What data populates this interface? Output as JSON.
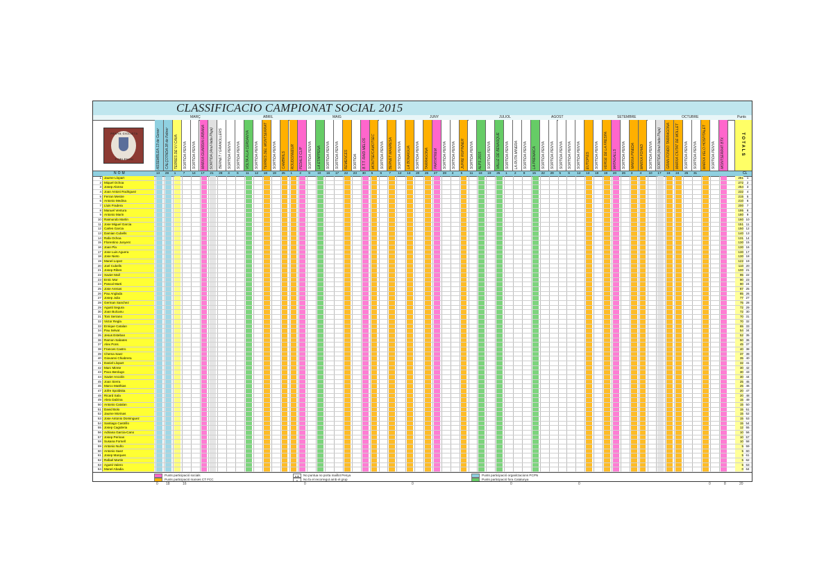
{
  "title": "CLASSIFICACIO CAMPIONAT SOCIAL 2015",
  "logo_text_top": "PENYA CICLISTA",
  "logo_text_bottom": "POBLENOU",
  "months": [
    "MARÇ",
    "ABRIL",
    "MAIG",
    "JUNY",
    "JULIOL",
    "AGOST",
    "SETEMBRE",
    "OCTUBRE",
    "Punts"
  ],
  "header_columns": [
    {
      "label": "ASSEMBLEA 13 de Gener",
      "color": "#8fd0e0"
    },
    {
      "label": "CALÇOTADA 28 de Febrer",
      "color": "#8fd0e0"
    },
    {
      "label": "TERRES DE V.I CAVA",
      "color": "#ffff66"
    },
    {
      "label": "SORTIDA PENYA",
      "color": "#ffffff"
    },
    {
      "label": "SORTIDA PENYA",
      "color": "#ffffff"
    },
    {
      "label": "MARXA GUARDIA URBANA",
      "color": "#ff66cc"
    },
    {
      "label": "SORTIDA (Anul·lada Pluja)",
      "color": "#e0e0e0"
    },
    {
      "label": "BERNET / GRANOLLERS",
      "color": "#ffffff"
    },
    {
      "label": "SORTIDA PENYA",
      "color": "#ffffff"
    },
    {
      "label": "SORTIDA PENYA",
      "color": "#ffffff"
    },
    {
      "label": "VOLTA A LA CERDANYA",
      "color": "#66cc66"
    },
    {
      "label": "SORTIDA PENYA",
      "color": "#ffffff"
    },
    {
      "label": "TERRES DEL MONTSERRAT",
      "color": "#ffb000"
    },
    {
      "label": "SORTIDA PENYA",
      "color": "#ffffff"
    },
    {
      "label": "CAMBRILS",
      "color": "#ffb000"
    },
    {
      "label": "ROUDONNEUR",
      "color": "#ffb000"
    },
    {
      "label": "PEDALS CLIP",
      "color": "#ff66cc"
    },
    {
      "label": "SORTIDA PENYA",
      "color": "#ffffff"
    },
    {
      "label": "LA ETAPPENA",
      "color": "#66cc66"
    },
    {
      "label": "SORTIDA PENYA",
      "color": "#ffffff"
    },
    {
      "label": "SORTIDA PENYA",
      "color": "#ffffff"
    },
    {
      "label": "REMENCES",
      "color": "#ffb000"
    },
    {
      "label": "SORTIDA",
      "color": "#ffffff"
    },
    {
      "label": "B.T.T. RAID MELOS",
      "color": "#ff66cc"
    },
    {
      "label": "MONTSE/CAMOTSEC",
      "color": "#ffb000"
    },
    {
      "label": "SORTIDA PENYA",
      "color": "#ffffff"
    },
    {
      "label": "BERNET MANRESA",
      "color": "#ffb000"
    },
    {
      "label": "SORTIDA PENYA",
      "color": "#ffffff"
    },
    {
      "label": "LA BONAIGUA",
      "color": "#ffb000"
    },
    {
      "label": "SORTIDA PENYA",
      "color": "#ffffff"
    },
    {
      "label": "TARRAGONA",
      "color": "#ffb000"
    },
    {
      "label": "PARTATREM",
      "color": "#ff66cc"
    },
    {
      "label": "SORTIDA PENYA",
      "color": "#ffffff"
    },
    {
      "label": "SORTIDA PENYA",
      "color": "#ffffff"
    },
    {
      "label": "JUFRE RUPINNER",
      "color": "#ffb000"
    },
    {
      "label": "SORTIDA PENYA",
      "color": "#ffffff"
    },
    {
      "label": "ALPS 2015",
      "color": "#66cc66"
    },
    {
      "label": "SORTIDA PENYA",
      "color": "#ffffff"
    },
    {
      "label": "VALLE DE BENASQUE",
      "color": "#66cc66"
    },
    {
      "label": "SORTIDA PENYA",
      "color": "#ffffff"
    },
    {
      "label": "LA RUTA MINERA",
      "color": "#ffffff"
    },
    {
      "label": "SORTIDA PENYA",
      "color": "#ffffff"
    },
    {
      "label": "LA PRENAICA",
      "color": "#66cc66"
    },
    {
      "label": "SORTIDA PENYA",
      "color": "#ffffff"
    },
    {
      "label": "SORTIDA PENYA",
      "color": "#ffffff"
    },
    {
      "label": "SORTIDA PENYA",
      "color": "#ffffff"
    },
    {
      "label": "SORTIDA PENYA",
      "color": "#ffffff"
    },
    {
      "label": "SORTIDA PENYA",
      "color": "#ffffff"
    },
    {
      "label": "EUTOPIES",
      "color": "#ffb000"
    },
    {
      "label": "SORTIDA PENYA",
      "color": "#ffffff"
    },
    {
      "label": "VERGE DE LA FRESPA",
      "color": "#ffb000"
    },
    {
      "label": "MATAGALLS",
      "color": "#ff66cc"
    },
    {
      "label": "SORTIDA PENYA",
      "color": "#ffffff"
    },
    {
      "label": "MARXA PINEDA",
      "color": "#ffb000"
    },
    {
      "label": "MARXA FOHAD",
      "color": "#ffb000"
    },
    {
      "label": "SORTIDA PENYA",
      "color": "#ffffff"
    },
    {
      "label": "SORTIDA (Anul·lada Pluja)",
      "color": "#e0e0e0"
    },
    {
      "label": "GRAN FONDO TARRAGONA",
      "color": "#ffb000"
    },
    {
      "label": "MARXA CIUTAT DE MOLLET",
      "color": "#ffb000"
    },
    {
      "label": "SORTIDA PENYA",
      "color": "#ffffff"
    },
    {
      "label": "SORTIDA PENYA",
      "color": "#ffffff"
    },
    {
      "label": "MARXA VELO HOSPITALET",
      "color": "#ffb000"
    },
    {
      "label": "SORTIDA PENYA",
      "color": "#ffffff"
    },
    {
      "label": "MONTSERRAT BTX",
      "color": "#ff66cc"
    },
    {
      "label": "ULTIMA SORTIDA PENYA",
      "color": "#ffffff"
    }
  ],
  "totals_label": "TOTALS",
  "number_row_label": "NOM",
  "cl_label": "CL",
  "date_numbers": [
    "13",
    "28",
    "1",
    "7",
    "14",
    "17",
    "21",
    "28",
    "4",
    "6",
    "11",
    "12",
    "18",
    "19",
    "25",
    "1",
    "2",
    "9",
    "10",
    "16",
    "17",
    "22",
    "23",
    "30",
    "5",
    "6",
    "7",
    "12",
    "13",
    "20",
    "26",
    "27",
    "28",
    "4",
    "5",
    "11",
    "18",
    "19",
    "25",
    "1",
    "2",
    "8",
    "15",
    "22",
    "29",
    "5",
    "6",
    "12",
    "13",
    "19",
    "19",
    "20",
    "26",
    "3",
    "4",
    "10",
    "17",
    "18",
    "24",
    "25",
    "31"
  ],
  "participants": [
    {
      "pos": "1",
      "name": "Jaume Llopart",
      "pts": "281",
      "cl": "1"
    },
    {
      "pos": "2",
      "name": "Miquel Ochoa",
      "pts": "272",
      "cl": "2"
    },
    {
      "pos": "3",
      "name": "Josep Alonso",
      "pts": "254",
      "cl": "3"
    },
    {
      "pos": "4",
      "name": "Joan Antoni Rodriguez",
      "pts": "232",
      "cl": "4"
    },
    {
      "pos": "5",
      "name": "Ferran Mestre",
      "pts": "215",
      "cl": "5"
    },
    {
      "pos": "6",
      "name": "Antonio Medina",
      "pts": "210",
      "cl": "6"
    },
    {
      "pos": "7",
      "name": "Lluis Fradera",
      "pts": "200",
      "cl": "7"
    },
    {
      "pos": "8",
      "name": "Manuel Ventura",
      "pts": "195",
      "cl": "8"
    },
    {
      "pos": "9",
      "name": "Antonio Marin",
      "pts": "180",
      "cl": "9"
    },
    {
      "pos": "10",
      "name": "Raimundo Martin",
      "pts": "160",
      "cl": "10"
    },
    {
      "pos": "11",
      "name": "Jose Miguel Garcia",
      "pts": "151",
      "cl": "11"
    },
    {
      "pos": "12",
      "name": "Carles Garcia",
      "pts": "150",
      "cl": "12"
    },
    {
      "pos": "13",
      "name": "Damian Cubells",
      "pts": "140",
      "cl": "13"
    },
    {
      "pos": "14",
      "name": "Rafa Ochoa",
      "pts": "131",
      "cl": "14"
    },
    {
      "pos": "15",
      "name": "Florentino Junyent",
      "pts": "130",
      "cl": "15"
    },
    {
      "pos": "16",
      "name": "Joan Pla",
      "pts": "130",
      "cl": "16"
    },
    {
      "pos": "17",
      "name": "Jose Luis Aguera",
      "pts": "130",
      "cl": "17"
    },
    {
      "pos": "18",
      "name": "Jose Nieto",
      "pts": "130",
      "cl": "18"
    },
    {
      "pos": "19",
      "name": "Manel Lopez",
      "pts": "122",
      "cl": "19"
    },
    {
      "pos": "20",
      "name": "Joel Cubells",
      "pts": "110",
      "cl": "20"
    },
    {
      "pos": "21",
      "name": "Josep Ribes",
      "pts": "100",
      "cl": "21"
    },
    {
      "pos": "22",
      "name": "Xavier Mall",
      "pts": "95",
      "cl": "22"
    },
    {
      "pos": "23",
      "name": "Enric Mor",
      "pts": "90",
      "cl": "23"
    },
    {
      "pos": "24",
      "name": "Pascal Marti",
      "pts": "90",
      "cl": "24"
    },
    {
      "pos": "25",
      "name": "Jose Arenas",
      "pts": "87",
      "cl": "25"
    },
    {
      "pos": "26",
      "name": "Pau Anglada",
      "pts": "85",
      "cl": "26"
    },
    {
      "pos": "27",
      "name": "Josep Julia",
      "pts": "77",
      "cl": "27"
    },
    {
      "pos": "28",
      "name": "German Sanchez",
      "pts": "75",
      "cl": "28"
    },
    {
      "pos": "29",
      "name": "Agusti Segura",
      "pts": "72",
      "cl": "29"
    },
    {
      "pos": "30",
      "name": "Joan Bulcanu",
      "pts": "72",
      "cl": "30"
    },
    {
      "pos": "31",
      "name": "Toni Serrano",
      "pts": "70",
      "cl": "31"
    },
    {
      "pos": "32",
      "name": "Victor Regla",
      "pts": "70",
      "cl": "32"
    },
    {
      "pos": "33",
      "name": "Enrique Catalan",
      "pts": "65",
      "cl": "33"
    },
    {
      "pos": "34",
      "name": "Pau Selvat",
      "pts": "54",
      "cl": "34"
    },
    {
      "pos": "35",
      "name": "Jesus Esteban",
      "pts": "52",
      "cl": "35"
    },
    {
      "pos": "36",
      "name": "Ramon Sabates",
      "pts": "50",
      "cl": "36"
    },
    {
      "pos": "37",
      "name": "Alex Pons",
      "pts": "45",
      "cl": "37"
    },
    {
      "pos": "38",
      "name": "Frances Castro",
      "pts": "40",
      "cl": "38"
    },
    {
      "pos": "39",
      "name": "Chema Saez",
      "pts": "37",
      "cl": "39"
    },
    {
      "pos": "40",
      "name": "Giovanni Chiabrera",
      "pts": "35",
      "cl": "40"
    },
    {
      "pos": "41",
      "name": "Daniel Llopart",
      "pts": "32",
      "cl": "41"
    },
    {
      "pos": "42",
      "name": "Marc Mirete",
      "pts": "30",
      "cl": "42"
    },
    {
      "pos": "43",
      "name": "Paco Berdugo",
      "pts": "30",
      "cl": "43"
    },
    {
      "pos": "44",
      "name": "Xavier Ancolin",
      "pts": "30",
      "cl": "44"
    },
    {
      "pos": "45",
      "name": "Joan Sierra",
      "pts": "25",
      "cl": "45"
    },
    {
      "pos": "46",
      "name": "Marco Matthias",
      "pts": "25",
      "cl": "46"
    },
    {
      "pos": "47",
      "name": "Jofre Spoldsita",
      "pts": "20",
      "cl": "47"
    },
    {
      "pos": "48",
      "name": "Ricard Sala",
      "pts": "20",
      "cl": "48"
    },
    {
      "pos": "49",
      "name": "Aleix Dalzina",
      "pts": "15",
      "cl": "49"
    },
    {
      "pos": "50",
      "name": "Antonio Catalan",
      "pts": "15",
      "cl": "50"
    },
    {
      "pos": "51",
      "name": "David Bolo",
      "pts": "15",
      "cl": "51"
    },
    {
      "pos": "52",
      "name": "Jaume Morinas",
      "pts": "15",
      "cl": "52"
    },
    {
      "pos": "53",
      "name": "Jose Antonio Dominguez",
      "pts": "15",
      "cl": "53"
    },
    {
      "pos": "54",
      "name": "Santiago Castrillo",
      "pts": "15",
      "cl": "54"
    },
    {
      "pos": "55",
      "name": "Josep Cagideria",
      "pts": "12",
      "cl": "55"
    },
    {
      "pos": "56",
      "name": "Adriana Garcia-Cano",
      "pts": "10",
      "cl": "56"
    },
    {
      "pos": "57",
      "name": "Josep Perinas",
      "pts": "10",
      "cl": "57"
    },
    {
      "pos": "58",
      "name": "Susana Fornell",
      "pts": "10",
      "cl": "58"
    },
    {
      "pos": "59",
      "name": "Antonio Nuño",
      "pts": "5",
      "cl": "59"
    },
    {
      "pos": "60",
      "name": "Antonio Saez",
      "pts": "5",
      "cl": "60"
    },
    {
      "pos": "61",
      "name": "Josep Marques",
      "pts": "5",
      "cl": "61"
    },
    {
      "pos": "62",
      "name": "Rafael Martin",
      "pts": "5",
      "cl": "62"
    },
    {
      "pos": "63",
      "name": "Agusti Valero",
      "pts": "5",
      "cl": "63"
    },
    {
      "pos": "64",
      "name": "Manel Abadia",
      "pts": "0",
      "cl": "64"
    }
  ],
  "legend": [
    {
      "swatch": "#ff66cc",
      "text": "Punts participació socials"
    },
    {
      "swatch": "#ffb000",
      "text": "Punts participació marxes CT FCC"
    },
    {
      "swatch": "#ffffff",
      "text": "No puntua no porta maillot Penya",
      "mark": "s.m"
    },
    {
      "swatch": "#ffffff",
      "text": "No fa el recorregut amb el grup",
      "mark": "c"
    },
    {
      "swatch": "#8fd0e0",
      "text": "Punts participació organitzacions PCPN"
    },
    {
      "swatch": "#66cc66",
      "text": "Punts participació fora Catalunya"
    }
  ],
  "footer_numbers": [
    "0",
    "18",
    "16",
    "0",
    "0",
    "0",
    "0",
    "0",
    "8",
    "20"
  ]
}
